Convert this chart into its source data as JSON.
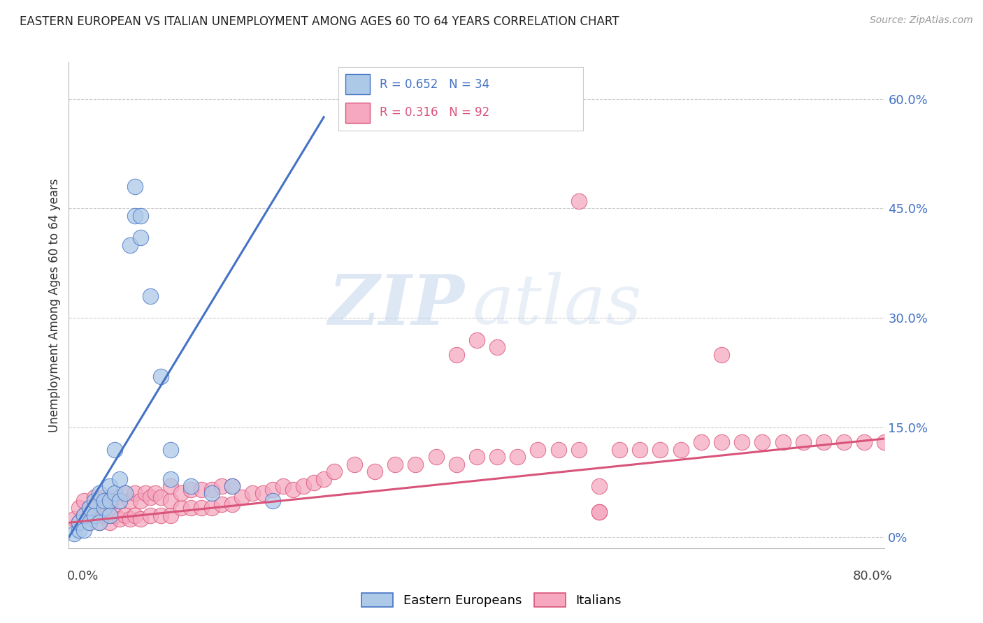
{
  "title": "EASTERN EUROPEAN VS ITALIAN UNEMPLOYMENT AMONG AGES 60 TO 64 YEARS CORRELATION CHART",
  "source": "Source: ZipAtlas.com",
  "ylabel": "Unemployment Among Ages 60 to 64 years",
  "ytick_values": [
    0.0,
    0.15,
    0.3,
    0.45,
    0.6
  ],
  "ytick_labels": [
    "0%",
    "15.0%",
    "30.0%",
    "45.0%",
    "60.0%"
  ],
  "xlim": [
    0.0,
    0.8
  ],
  "ylim": [
    -0.015,
    0.65
  ],
  "eu_color": "#adc9e8",
  "eu_line_color": "#4472c4",
  "it_color": "#f5a8c0",
  "it_line_color": "#d9547a",
  "eu_line_x0": 0.0,
  "eu_line_y0": 0.0,
  "eu_line_x1": 0.25,
  "eu_line_y1": 0.575,
  "it_line_x0": 0.0,
  "it_line_y0": 0.02,
  "it_line_x1": 0.8,
  "it_line_y1": 0.135,
  "eu_x": [
    0.005,
    0.01,
    0.01,
    0.015,
    0.015,
    0.02,
    0.02,
    0.025,
    0.025,
    0.03,
    0.03,
    0.035,
    0.035,
    0.04,
    0.04,
    0.04,
    0.045,
    0.045,
    0.05,
    0.05,
    0.055,
    0.06,
    0.065,
    0.065,
    0.07,
    0.07,
    0.08,
    0.09,
    0.1,
    0.1,
    0.12,
    0.14,
    0.16,
    0.2
  ],
  "eu_y": [
    0.005,
    0.01,
    0.02,
    0.01,
    0.03,
    0.02,
    0.04,
    0.03,
    0.05,
    0.02,
    0.06,
    0.04,
    0.05,
    0.03,
    0.05,
    0.07,
    0.06,
    0.12,
    0.05,
    0.08,
    0.06,
    0.4,
    0.44,
    0.48,
    0.41,
    0.44,
    0.33,
    0.22,
    0.08,
    0.12,
    0.07,
    0.06,
    0.07,
    0.05
  ],
  "it_x": [
    0.005,
    0.01,
    0.01,
    0.015,
    0.015,
    0.02,
    0.02,
    0.025,
    0.025,
    0.03,
    0.03,
    0.035,
    0.035,
    0.04,
    0.04,
    0.045,
    0.045,
    0.05,
    0.05,
    0.055,
    0.055,
    0.06,
    0.06,
    0.065,
    0.065,
    0.07,
    0.07,
    0.075,
    0.08,
    0.08,
    0.085,
    0.09,
    0.09,
    0.1,
    0.1,
    0.1,
    0.11,
    0.11,
    0.12,
    0.12,
    0.13,
    0.13,
    0.14,
    0.14,
    0.15,
    0.15,
    0.16,
    0.16,
    0.17,
    0.18,
    0.19,
    0.2,
    0.21,
    0.22,
    0.23,
    0.24,
    0.25,
    0.26,
    0.28,
    0.3,
    0.32,
    0.34,
    0.36,
    0.38,
    0.4,
    0.42,
    0.44,
    0.46,
    0.48,
    0.5,
    0.52,
    0.52,
    0.54,
    0.56,
    0.58,
    0.6,
    0.62,
    0.64,
    0.66,
    0.68,
    0.7,
    0.72,
    0.74,
    0.76,
    0.78,
    0.8,
    0.42,
    0.5,
    0.52,
    0.64,
    0.4,
    0.38
  ],
  "it_y": [
    0.025,
    0.02,
    0.04,
    0.03,
    0.05,
    0.02,
    0.04,
    0.03,
    0.055,
    0.02,
    0.045,
    0.03,
    0.055,
    0.02,
    0.045,
    0.03,
    0.055,
    0.025,
    0.05,
    0.03,
    0.06,
    0.025,
    0.05,
    0.03,
    0.06,
    0.025,
    0.05,
    0.06,
    0.03,
    0.055,
    0.06,
    0.03,
    0.055,
    0.03,
    0.05,
    0.07,
    0.04,
    0.06,
    0.04,
    0.065,
    0.04,
    0.065,
    0.04,
    0.065,
    0.045,
    0.07,
    0.045,
    0.07,
    0.055,
    0.06,
    0.06,
    0.065,
    0.07,
    0.065,
    0.07,
    0.075,
    0.08,
    0.09,
    0.1,
    0.09,
    0.1,
    0.1,
    0.11,
    0.1,
    0.11,
    0.11,
    0.11,
    0.12,
    0.12,
    0.12,
    0.035,
    0.07,
    0.12,
    0.12,
    0.12,
    0.12,
    0.13,
    0.13,
    0.13,
    0.13,
    0.13,
    0.13,
    0.13,
    0.13,
    0.13,
    0.13,
    0.26,
    0.46,
    0.035,
    0.25,
    0.27,
    0.25
  ]
}
